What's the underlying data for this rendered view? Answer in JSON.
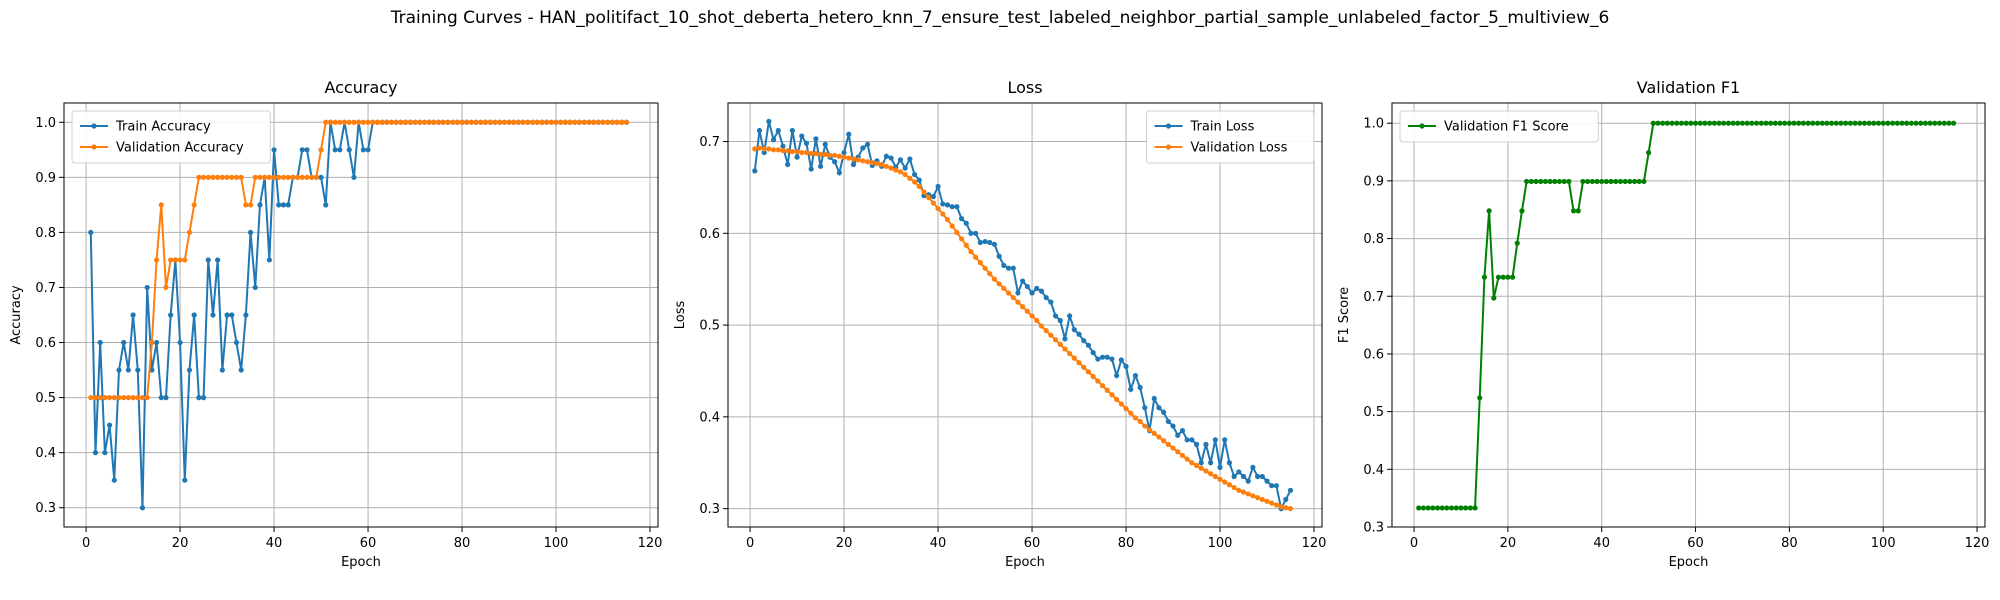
{
  "figure": {
    "title": "Training Curves - HAN_politifact_10_shot_deberta_hetero_knn_7_ensure_test_labeled_neighbor_partial_sample_unlabeled_factor_5_multiview_6"
  },
  "chart_data": [
    {
      "type": "line",
      "title": "Accuracy",
      "xlabel": "Epoch",
      "ylabel": "Accuracy",
      "xlim": [
        -4.7,
        121.7
      ],
      "ylim": [
        0.265,
        1.035
      ],
      "xticks": [
        0,
        20,
        40,
        60,
        80,
        100,
        120
      ],
      "yticks": [
        0.3,
        0.4,
        0.5,
        0.6,
        0.7,
        0.8,
        0.9,
        1.0
      ],
      "ytick_labels": [
        "0.3",
        "0.4",
        "0.5",
        "0.6",
        "0.7",
        "0.8",
        "0.9",
        "1.0"
      ],
      "grid": true,
      "legend": "top-left",
      "series": [
        {
          "name": "Train Accuracy",
          "color": "#1f77b4",
          "x_start": 1,
          "values": [
            0.8,
            0.4,
            0.6,
            0.4,
            0.45,
            0.35,
            0.55,
            0.6,
            0.55,
            0.65,
            0.55,
            0.3,
            0.7,
            0.55,
            0.6,
            0.5,
            0.5,
            0.65,
            0.75,
            0.6,
            0.35,
            0.55,
            0.65,
            0.5,
            0.5,
            0.75,
            0.65,
            0.75,
            0.55,
            0.65,
            0.65,
            0.6,
            0.55,
            0.65,
            0.8,
            0.7,
            0.85,
            0.9,
            0.75,
            0.95,
            0.85,
            0.85,
            0.85,
            0.9,
            0.9,
            0.95,
            0.95,
            0.9,
            0.9,
            0.9,
            0.85,
            1.0,
            0.95,
            0.95,
            1.0,
            0.95,
            0.9,
            1.0,
            0.95,
            0.95,
            1.0,
            1.0,
            1.0,
            1.0,
            1.0,
            1.0,
            1.0,
            1.0,
            1.0,
            1.0,
            1.0,
            1.0,
            1.0,
            1.0,
            1.0,
            1.0,
            1.0,
            1.0,
            1.0,
            1.0,
            1.0,
            1.0,
            1.0,
            1.0,
            1.0,
            1.0,
            1.0,
            1.0,
            1.0,
            1.0,
            1.0,
            1.0,
            1.0,
            1.0,
            1.0,
            1.0,
            1.0,
            1.0,
            1.0,
            1.0,
            1.0,
            1.0,
            1.0,
            1.0,
            1.0,
            1.0,
            1.0,
            1.0,
            1.0,
            1.0,
            1.0,
            1.0,
            1.0,
            1.0,
            1.0
          ]
        },
        {
          "name": "Validation Accuracy",
          "color": "#ff7f0e",
          "x_start": 1,
          "values": [
            0.5,
            0.5,
            0.5,
            0.5,
            0.5,
            0.5,
            0.5,
            0.5,
            0.5,
            0.5,
            0.5,
            0.5,
            0.5,
            0.6,
            0.75,
            0.85,
            0.7,
            0.75,
            0.75,
            0.75,
            0.75,
            0.8,
            0.85,
            0.9,
            0.9,
            0.9,
            0.9,
            0.9,
            0.9,
            0.9,
            0.9,
            0.9,
            0.9,
            0.85,
            0.85,
            0.9,
            0.9,
            0.9,
            0.9,
            0.9,
            0.9,
            0.9,
            0.9,
            0.9,
            0.9,
            0.9,
            0.9,
            0.9,
            0.9,
            0.95,
            1.0,
            1.0,
            1.0,
            1.0,
            1.0,
            1.0,
            1.0,
            1.0,
            1.0,
            1.0,
            1.0,
            1.0,
            1.0,
            1.0,
            1.0,
            1.0,
            1.0,
            1.0,
            1.0,
            1.0,
            1.0,
            1.0,
            1.0,
            1.0,
            1.0,
            1.0,
            1.0,
            1.0,
            1.0,
            1.0,
            1.0,
            1.0,
            1.0,
            1.0,
            1.0,
            1.0,
            1.0,
            1.0,
            1.0,
            1.0,
            1.0,
            1.0,
            1.0,
            1.0,
            1.0,
            1.0,
            1.0,
            1.0,
            1.0,
            1.0,
            1.0,
            1.0,
            1.0,
            1.0,
            1.0,
            1.0,
            1.0,
            1.0,
            1.0,
            1.0,
            1.0,
            1.0,
            1.0,
            1.0,
            1.0
          ]
        }
      ]
    },
    {
      "type": "line",
      "title": "Loss",
      "xlabel": "Epoch",
      "ylabel": "Loss",
      "xlim": [
        -4.7,
        121.7
      ],
      "ylim": [
        0.28,
        0.742
      ],
      "xticks": [
        0,
        20,
        40,
        60,
        80,
        100,
        120
      ],
      "yticks": [
        0.3,
        0.4,
        0.5,
        0.6,
        0.7
      ],
      "ytick_labels": [
        "0.3",
        "0.4",
        "0.5",
        "0.6",
        "0.7"
      ],
      "grid": true,
      "legend": "top-right",
      "series": [
        {
          "name": "Train Loss",
          "color": "#1f77b4",
          "x_start": 1,
          "values": [
            0.668,
            0.712,
            0.688,
            0.722,
            0.702,
            0.712,
            0.695,
            0.675,
            0.712,
            0.683,
            0.706,
            0.698,
            0.67,
            0.703,
            0.673,
            0.697,
            0.683,
            0.678,
            0.666,
            0.688,
            0.708,
            0.675,
            0.683,
            0.693,
            0.697,
            0.674,
            0.679,
            0.673,
            0.684,
            0.682,
            0.672,
            0.68,
            0.671,
            0.681,
            0.664,
            0.658,
            0.641,
            0.642,
            0.64,
            0.651,
            0.632,
            0.631,
            0.629,
            0.629,
            0.616,
            0.611,
            0.6,
            0.6,
            0.59,
            0.591,
            0.59,
            0.588,
            0.575,
            0.565,
            0.562,
            0.562,
            0.535,
            0.548,
            0.542,
            0.535,
            0.54,
            0.537,
            0.53,
            0.525,
            0.51,
            0.505,
            0.485,
            0.51,
            0.495,
            0.49,
            0.483,
            0.478,
            0.47,
            0.463,
            0.465,
            0.465,
            0.463,
            0.445,
            0.462,
            0.455,
            0.43,
            0.445,
            0.432,
            0.41,
            0.385,
            0.42,
            0.41,
            0.405,
            0.395,
            0.39,
            0.38,
            0.385,
            0.375,
            0.375,
            0.37,
            0.35,
            0.37,
            0.35,
            0.375,
            0.345,
            0.375,
            0.35,
            0.335,
            0.34,
            0.335,
            0.33,
            0.345,
            0.335,
            0.335,
            0.33,
            0.325,
            0.325,
            0.3,
            0.31,
            0.32
          ]
        },
        {
          "name": "Validation Loss",
          "color": "#ff7f0e",
          "x_start": 1,
          "values": [
            0.692,
            0.693,
            0.692,
            0.692,
            0.691,
            0.691,
            0.69,
            0.69,
            0.689,
            0.689,
            0.688,
            0.688,
            0.687,
            0.687,
            0.686,
            0.686,
            0.685,
            0.685,
            0.684,
            0.683,
            0.682,
            0.681,
            0.68,
            0.679,
            0.678,
            0.677,
            0.676,
            0.675,
            0.673,
            0.671,
            0.669,
            0.667,
            0.664,
            0.66,
            0.656,
            0.651,
            0.645,
            0.639,
            0.633,
            0.627,
            0.621,
            0.615,
            0.608,
            0.601,
            0.594,
            0.587,
            0.58,
            0.574,
            0.568,
            0.562,
            0.556,
            0.55,
            0.545,
            0.54,
            0.535,
            0.53,
            0.525,
            0.52,
            0.515,
            0.51,
            0.505,
            0.499,
            0.494,
            0.489,
            0.484,
            0.479,
            0.474,
            0.469,
            0.464,
            0.459,
            0.454,
            0.449,
            0.444,
            0.439,
            0.434,
            0.429,
            0.424,
            0.419,
            0.414,
            0.409,
            0.404,
            0.399,
            0.395,
            0.39,
            0.386,
            0.382,
            0.378,
            0.374,
            0.37,
            0.366,
            0.362,
            0.358,
            0.354,
            0.35,
            0.347,
            0.344,
            0.341,
            0.338,
            0.335,
            0.332,
            0.329,
            0.326,
            0.323,
            0.32,
            0.318,
            0.316,
            0.314,
            0.312,
            0.31,
            0.308,
            0.306,
            0.304,
            0.302,
            0.301,
            0.3
          ]
        }
      ]
    },
    {
      "type": "line",
      "title": "Validation F1",
      "xlabel": "Epoch",
      "ylabel": "F1 Score",
      "xlim": [
        -4.7,
        121.7
      ],
      "ylim": [
        0.3,
        1.035
      ],
      "xticks": [
        0,
        20,
        40,
        60,
        80,
        100,
        120
      ],
      "yticks": [
        0.3,
        0.4,
        0.5,
        0.6,
        0.7,
        0.8,
        0.9,
        1.0
      ],
      "ytick_labels": [
        "0.3",
        "0.4",
        "0.5",
        "0.6",
        "0.7",
        "0.8",
        "0.9",
        "1.0"
      ],
      "grid": true,
      "legend": "top-left",
      "series": [
        {
          "name": "Validation F1 Score",
          "color": "#008000",
          "x_start": 1,
          "values": [
            0.333,
            0.333,
            0.333,
            0.333,
            0.333,
            0.333,
            0.333,
            0.333,
            0.333,
            0.333,
            0.333,
            0.333,
            0.333,
            0.524,
            0.733,
            0.848,
            0.697,
            0.733,
            0.733,
            0.733,
            0.733,
            0.792,
            0.848,
            0.899,
            0.899,
            0.899,
            0.899,
            0.899,
            0.899,
            0.899,
            0.899,
            0.899,
            0.899,
            0.848,
            0.848,
            0.899,
            0.899,
            0.899,
            0.899,
            0.899,
            0.899,
            0.899,
            0.899,
            0.899,
            0.899,
            0.899,
            0.899,
            0.899,
            0.899,
            0.949,
            1.0,
            1.0,
            1.0,
            1.0,
            1.0,
            1.0,
            1.0,
            1.0,
            1.0,
            1.0,
            1.0,
            1.0,
            1.0,
            1.0,
            1.0,
            1.0,
            1.0,
            1.0,
            1.0,
            1.0,
            1.0,
            1.0,
            1.0,
            1.0,
            1.0,
            1.0,
            1.0,
            1.0,
            1.0,
            1.0,
            1.0,
            1.0,
            1.0,
            1.0,
            1.0,
            1.0,
            1.0,
            1.0,
            1.0,
            1.0,
            1.0,
            1.0,
            1.0,
            1.0,
            1.0,
            1.0,
            1.0,
            1.0,
            1.0,
            1.0,
            1.0,
            1.0,
            1.0,
            1.0,
            1.0,
            1.0,
            1.0,
            1.0,
            1.0,
            1.0,
            1.0,
            1.0,
            1.0,
            1.0,
            1.0
          ]
        }
      ]
    }
  ]
}
